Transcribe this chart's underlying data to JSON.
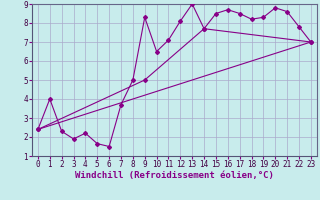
{
  "background_color": "#c8ecec",
  "grid_color": "#aaaacc",
  "line_color": "#880088",
  "xlabel": "Windchill (Refroidissement éolien,°C)",
  "xlim": [
    -0.5,
    23.5
  ],
  "ylim": [
    1,
    9
  ],
  "xticks": [
    0,
    1,
    2,
    3,
    4,
    5,
    6,
    7,
    8,
    9,
    10,
    11,
    12,
    13,
    14,
    15,
    16,
    17,
    18,
    19,
    20,
    21,
    22,
    23
  ],
  "yticks": [
    1,
    2,
    3,
    4,
    5,
    6,
    7,
    8,
    9
  ],
  "series1_x": [
    0,
    1,
    2,
    3,
    4,
    5,
    6,
    7,
    8,
    9,
    10,
    11,
    12,
    13,
    14,
    15,
    16,
    17,
    18,
    19,
    20,
    21,
    22,
    23
  ],
  "series1_y": [
    2.4,
    4.0,
    2.3,
    1.9,
    2.2,
    1.65,
    1.5,
    3.7,
    5.0,
    8.3,
    6.5,
    7.1,
    8.1,
    9.0,
    7.7,
    8.5,
    8.7,
    8.5,
    8.2,
    8.3,
    8.8,
    8.6,
    7.8,
    7.0
  ],
  "series2_x": [
    0,
    23
  ],
  "series2_y": [
    2.4,
    7.0
  ],
  "series3_x": [
    0,
    9,
    14,
    23
  ],
  "series3_y": [
    2.4,
    5.0,
    7.7,
    7.0
  ],
  "tick_fontsize": 5.5,
  "xlabel_fontsize": 6.5,
  "marker": "D",
  "markersize": 2.0,
  "linewidth": 0.8
}
